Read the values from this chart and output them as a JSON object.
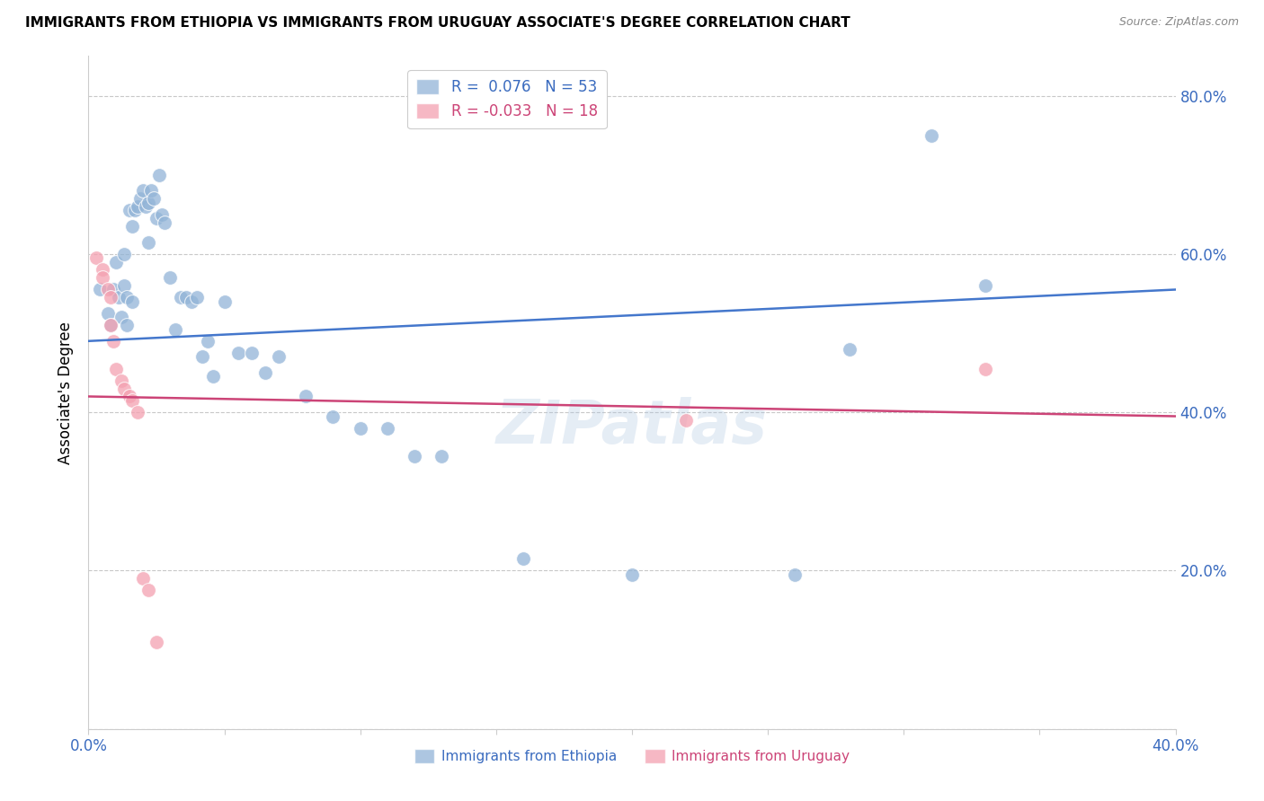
{
  "title": "IMMIGRANTS FROM ETHIOPIA VS IMMIGRANTS FROM URUGUAY ASSOCIATE'S DEGREE CORRELATION CHART",
  "source": "Source: ZipAtlas.com",
  "ylabel": "Associate's Degree",
  "x_min": 0.0,
  "x_max": 0.4,
  "y_min": 0.0,
  "y_max": 0.85,
  "grid_color": "#c8c8c8",
  "background_color": "#ffffff",
  "ethiopia_color": "#92b4d7",
  "uruguay_color": "#f4a0b0",
  "ethiopia_line_color": "#4477cc",
  "uruguay_line_color": "#cc4477",
  "legend_label_ethiopia": "R =  0.076   N = 53",
  "legend_label_uruguay": "R = -0.033   N = 18",
  "ethiopia_scatter_x": [
    0.004,
    0.007,
    0.008,
    0.009,
    0.01,
    0.011,
    0.012,
    0.013,
    0.013,
    0.014,
    0.014,
    0.015,
    0.016,
    0.016,
    0.017,
    0.018,
    0.019,
    0.02,
    0.021,
    0.022,
    0.022,
    0.023,
    0.024,
    0.025,
    0.026,
    0.027,
    0.028,
    0.03,
    0.032,
    0.034,
    0.036,
    0.038,
    0.04,
    0.042,
    0.044,
    0.046,
    0.05,
    0.055,
    0.06,
    0.065,
    0.07,
    0.08,
    0.09,
    0.1,
    0.11,
    0.12,
    0.13,
    0.16,
    0.2,
    0.26,
    0.28,
    0.31,
    0.33
  ],
  "ethiopia_scatter_y": [
    0.555,
    0.525,
    0.51,
    0.555,
    0.59,
    0.545,
    0.52,
    0.6,
    0.56,
    0.545,
    0.51,
    0.655,
    0.635,
    0.54,
    0.655,
    0.66,
    0.67,
    0.68,
    0.66,
    0.665,
    0.615,
    0.68,
    0.67,
    0.645,
    0.7,
    0.65,
    0.64,
    0.57,
    0.505,
    0.545,
    0.545,
    0.54,
    0.545,
    0.47,
    0.49,
    0.445,
    0.54,
    0.475,
    0.475,
    0.45,
    0.47,
    0.42,
    0.395,
    0.38,
    0.38,
    0.345,
    0.345,
    0.215,
    0.195,
    0.195,
    0.48,
    0.75,
    0.56
  ],
  "uruguay_scatter_x": [
    0.003,
    0.005,
    0.005,
    0.007,
    0.008,
    0.008,
    0.009,
    0.01,
    0.012,
    0.013,
    0.015,
    0.016,
    0.018,
    0.02,
    0.022,
    0.025,
    0.22,
    0.33
  ],
  "uruguay_scatter_y": [
    0.595,
    0.58,
    0.57,
    0.555,
    0.545,
    0.51,
    0.49,
    0.455,
    0.44,
    0.43,
    0.42,
    0.415,
    0.4,
    0.19,
    0.175,
    0.11,
    0.39,
    0.455
  ],
  "ethiopia_line_x0": 0.0,
  "ethiopia_line_x1": 0.4,
  "ethiopia_line_y0": 0.49,
  "ethiopia_line_y1": 0.555,
  "uruguay_line_x0": 0.0,
  "uruguay_line_x1": 0.4,
  "uruguay_line_y0": 0.42,
  "uruguay_line_y1": 0.395,
  "watermark": "ZIPatlas",
  "bottom_legend_ethiopia": "Immigrants from Ethiopia",
  "bottom_legend_uruguay": "Immigrants from Uruguay"
}
